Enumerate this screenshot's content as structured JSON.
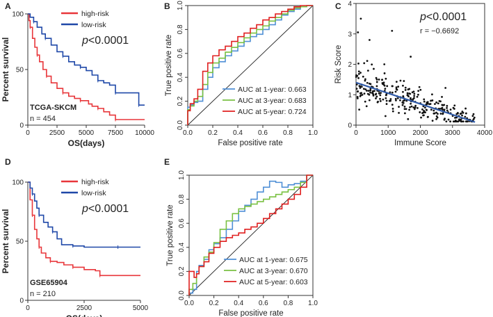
{
  "chart_data": [
    {
      "panel": "A",
      "type": "line",
      "subtype": "kaplan-meier",
      "xlabel": "OS(days)",
      "ylabel": "Percent survival",
      "xlim": [
        0,
        10000
      ],
      "ylim": [
        0,
        100
      ],
      "xticks": [
        "0",
        "2500",
        "5000",
        "7500",
        "10000"
      ],
      "yticks": [
        "0",
        "50",
        "100"
      ],
      "pvalue": "p<0.0001",
      "cohort": "TCGA-SKCM",
      "n_label": "n = 454",
      "series": [
        {
          "name": "high-risk",
          "color": "#e8363a",
          "x": [
            0,
            100,
            200,
            400,
            600,
            800,
            1000,
            1300,
            1600,
            2000,
            2500,
            3000,
            3500,
            4000,
            4500,
            5200,
            5500,
            6000,
            6500,
            7000,
            7500,
            8000,
            10000
          ],
          "y": [
            100,
            94,
            88,
            78,
            70,
            63,
            57,
            50,
            44,
            38,
            33,
            29,
            26,
            24,
            22,
            19,
            17,
            15,
            12,
            9,
            5,
            5,
            5
          ]
        },
        {
          "name": "low-risk",
          "color": "#1f48a8",
          "x": [
            0,
            200,
            500,
            800,
            1200,
            1500,
            2000,
            2500,
            3000,
            3500,
            4000,
            4500,
            5000,
            5500,
            6000,
            6500,
            7000,
            7500,
            8000,
            8500,
            9500,
            10000
          ],
          "y": [
            100,
            97,
            93,
            88,
            82,
            78,
            72,
            66,
            62,
            57,
            54,
            52,
            49,
            45,
            40,
            38,
            36,
            29,
            29,
            29,
            18,
            18
          ]
        }
      ]
    },
    {
      "panel": "B",
      "type": "line",
      "subtype": "roc",
      "xlabel": "False positive rate",
      "ylabel": "True positive rate",
      "xlim": [
        0,
        1
      ],
      "ylim": [
        0,
        1
      ],
      "xticks": [
        "0.0",
        "0.2",
        "0.4",
        "0.6",
        "0.8",
        "1.0"
      ],
      "yticks": [
        "0.0",
        "0.2",
        "0.4",
        "0.6",
        "0.8",
        "1.0"
      ],
      "series": [
        {
          "name": "AUC at 1-year: 0.663",
          "color": "#4f8fd6",
          "x": [
            0,
            0.02,
            0.05,
            0.08,
            0.12,
            0.16,
            0.2,
            0.25,
            0.3,
            0.35,
            0.4,
            0.45,
            0.5,
            0.55,
            0.6,
            0.65,
            0.7,
            0.75,
            0.8,
            0.85,
            0.9,
            0.95,
            1
          ],
          "y": [
            0,
            0.15,
            0.17,
            0.19,
            0.2,
            0.3,
            0.4,
            0.48,
            0.53,
            0.58,
            0.62,
            0.66,
            0.7,
            0.74,
            0.76,
            0.8,
            0.84,
            0.88,
            0.92,
            0.95,
            0.97,
            0.99,
            1
          ]
        },
        {
          "name": "AUC at 3-year: 0.683",
          "color": "#7ac142",
          "x": [
            0,
            0.02,
            0.05,
            0.08,
            0.12,
            0.16,
            0.2,
            0.25,
            0.3,
            0.35,
            0.4,
            0.45,
            0.5,
            0.55,
            0.6,
            0.65,
            0.7,
            0.75,
            0.8,
            0.85,
            0.9,
            0.95,
            1
          ],
          "y": [
            0,
            0.13,
            0.16,
            0.2,
            0.24,
            0.34,
            0.44,
            0.52,
            0.56,
            0.61,
            0.65,
            0.69,
            0.73,
            0.77,
            0.8,
            0.83,
            0.87,
            0.9,
            0.93,
            0.96,
            0.98,
            0.99,
            1
          ]
        },
        {
          "name": "AUC at 5-year: 0.724",
          "color": "#e02020",
          "x": [
            0,
            0.02,
            0.05,
            0.08,
            0.12,
            0.16,
            0.2,
            0.25,
            0.3,
            0.35,
            0.4,
            0.45,
            0.5,
            0.55,
            0.6,
            0.65,
            0.7,
            0.75,
            0.8,
            0.85,
            0.9,
            0.95,
            1
          ],
          "y": [
            0,
            0.12,
            0.18,
            0.22,
            0.3,
            0.45,
            0.52,
            0.58,
            0.63,
            0.66,
            0.7,
            0.74,
            0.77,
            0.81,
            0.84,
            0.88,
            0.9,
            0.93,
            0.95,
            0.97,
            0.99,
            1,
            1
          ]
        }
      ]
    },
    {
      "panel": "C",
      "type": "scatter",
      "xlabel": "Immune Score",
      "ylabel": "Risk Score",
      "xlim": [
        0,
        4000
      ],
      "ylim": [
        0,
        4
      ],
      "xticks": [
        "0",
        "1000",
        "2000",
        "3000",
        "4000"
      ],
      "yticks": [
        "0",
        "1",
        "2",
        "3",
        "4"
      ],
      "pvalue": "p<0.0001",
      "r_label": "r = −0.6692",
      "point_color": "#111111",
      "fit_line": {
        "color": "#2f5aa8",
        "x": [
          0,
          3700
        ],
        "y": [
          1.4,
          0.1
        ]
      },
      "points_spec": {
        "count": 300,
        "x_range": [
          0,
          3700
        ],
        "intercept": 1.4,
        "slope": -0.00035,
        "noise_sd": 0.38
      },
      "outliers": [
        {
          "x": 150,
          "y": 3.5
        },
        {
          "x": 60,
          "y": 3.05
        },
        {
          "x": 420,
          "y": 2.8
        },
        {
          "x": 1120,
          "y": 3.1
        },
        {
          "x": 1700,
          "y": 2.25
        },
        {
          "x": 880,
          "y": 2.0
        }
      ]
    },
    {
      "panel": "D",
      "type": "line",
      "subtype": "kaplan-meier",
      "xlabel": "OS(days)",
      "ylabel": "Percent survival",
      "xlim": [
        0,
        5000
      ],
      "ylim": [
        0,
        100
      ],
      "xticks": [
        "0",
        "2500",
        "5000"
      ],
      "yticks": [
        "0",
        "50",
        "100"
      ],
      "pvalue": "p<0.0001",
      "cohort": "GSE65904",
      "n_label": "n = 210",
      "series": [
        {
          "name": "high-risk",
          "color": "#e8363a",
          "x": [
            0,
            100,
            200,
            300,
            400,
            500,
            600,
            800,
            1000,
            1300,
            1600,
            2000,
            2500,
            3000,
            3200,
            3500,
            5000
          ],
          "y": [
            100,
            85,
            72,
            60,
            52,
            45,
            40,
            36,
            33,
            32,
            30,
            28,
            26,
            25,
            21,
            21,
            21
          ]
        },
        {
          "name": "low-risk",
          "color": "#1f48a8",
          "x": [
            0,
            100,
            200,
            300,
            400,
            500,
            700,
            900,
            1100,
            1300,
            1500,
            2000,
            2500,
            3000,
            4000,
            5000
          ],
          "y": [
            100,
            95,
            90,
            84,
            78,
            72,
            66,
            62,
            58,
            52,
            47,
            46,
            45,
            45,
            45,
            45
          ]
        }
      ]
    },
    {
      "panel": "E",
      "type": "line",
      "subtype": "roc",
      "xlabel": "False positive rate",
      "ylabel": "True positive rate",
      "xlim": [
        0,
        1
      ],
      "ylim": [
        0,
        1
      ],
      "xticks": [
        "0.0",
        "0.2",
        "0.4",
        "0.6",
        "0.8",
        "1.0"
      ],
      "yticks": [
        "0.0",
        "0.2",
        "0.4",
        "0.6",
        "0.8",
        "1.0"
      ],
      "series": [
        {
          "name": "AUC at 1-year: 0.675",
          "color": "#4f8fd6",
          "x": [
            0,
            0.03,
            0.06,
            0.08,
            0.12,
            0.16,
            0.2,
            0.25,
            0.3,
            0.35,
            0.4,
            0.45,
            0.5,
            0.55,
            0.6,
            0.65,
            0.7,
            0.75,
            0.8,
            0.85,
            0.9,
            0.95,
            1
          ],
          "y": [
            0,
            0.02,
            0.05,
            0.2,
            0.25,
            0.3,
            0.38,
            0.43,
            0.48,
            0.55,
            0.62,
            0.7,
            0.75,
            0.8,
            0.86,
            0.9,
            0.95,
            0.94,
            0.9,
            0.92,
            0.93,
            0.95,
            1
          ]
        },
        {
          "name": "AUC at 3-year: 0.670",
          "color": "#7ac142",
          "x": [
            0,
            0.03,
            0.06,
            0.08,
            0.12,
            0.16,
            0.2,
            0.25,
            0.3,
            0.35,
            0.4,
            0.45,
            0.5,
            0.55,
            0.6,
            0.65,
            0.7,
            0.75,
            0.8,
            0.85,
            0.9,
            0.95,
            1
          ],
          "y": [
            0,
            0.05,
            0.1,
            0.18,
            0.24,
            0.32,
            0.36,
            0.44,
            0.55,
            0.62,
            0.68,
            0.72,
            0.74,
            0.76,
            0.78,
            0.8,
            0.82,
            0.84,
            0.86,
            0.88,
            0.9,
            0.94,
            1
          ]
        },
        {
          "name": "AUC at 5-year: 0.603",
          "color": "#e02020",
          "x": [
            0,
            0.02,
            0.04,
            0.06,
            0.08,
            0.12,
            0.16,
            0.2,
            0.25,
            0.3,
            0.35,
            0.4,
            0.45,
            0.5,
            0.55,
            0.6,
            0.65,
            0.7,
            0.75,
            0.8,
            0.85,
            0.9,
            0.95,
            1
          ],
          "y": [
            0,
            0.2,
            0.2,
            0.15,
            0.18,
            0.24,
            0.28,
            0.35,
            0.4,
            0.45,
            0.48,
            0.5,
            0.52,
            0.55,
            0.57,
            0.6,
            0.64,
            0.68,
            0.72,
            0.76,
            0.8,
            0.84,
            0.9,
            1
          ]
        }
      ]
    }
  ]
}
